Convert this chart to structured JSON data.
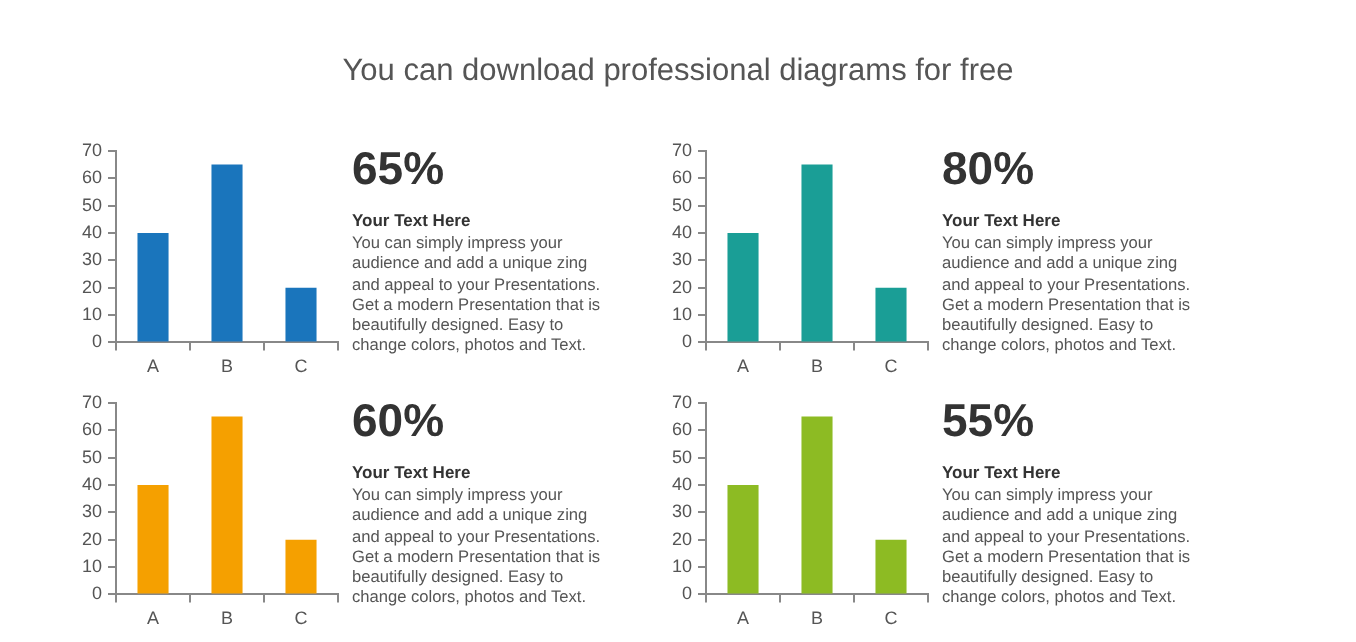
{
  "chart_data": [
    {
      "type": "bar",
      "subtitle": "You can download professional diagrams for free",
      "categories": [
        "A",
        "B",
        "C"
      ],
      "values": [
        40,
        65,
        20
      ],
      "color": "#1a75bc",
      "ylim": [
        0,
        70
      ],
      "yticks": [
        0,
        10,
        20,
        30,
        40,
        50,
        60,
        70
      ],
      "grid": false,
      "legend": false,
      "annotations": [
        "65%",
        "Your Text Here",
        "You can simply impress your audience and add a unique zing and appeal to your Presentations. Get a modern Presentation that is beautifully designed. Easy to change colors, photos and Text."
      ]
    },
    {
      "type": "bar",
      "categories": [
        "A",
        "B",
        "C"
      ],
      "values": [
        40,
        65,
        20
      ],
      "color": "#1a9e96",
      "ylim": [
        0,
        70
      ],
      "yticks": [
        0,
        10,
        20,
        30,
        40,
        50,
        60,
        70
      ],
      "grid": false,
      "legend": false,
      "annotations": [
        "80%",
        "Your Text Here",
        "You can simply impress your audience and add a unique zing and appeal to your Presentations. Get a modern Presentation that is beautifully designed. Easy to change colors, photos and Text."
      ]
    },
    {
      "type": "bar",
      "categories": [
        "A",
        "B",
        "C"
      ],
      "values": [
        40,
        65,
        20
      ],
      "color": "#f5a000",
      "ylim": [
        0,
        70
      ],
      "yticks": [
        0,
        10,
        20,
        30,
        40,
        50,
        60,
        70
      ],
      "grid": false,
      "legend": false,
      "annotations": [
        "60%",
        "Your Text Here",
        "You can simply impress your audience and add a unique zing and appeal to your Presentations. Get a modern Presentation that is beautifully designed. Easy to change colors, photos and Text."
      ]
    },
    {
      "type": "bar",
      "categories": [
        "A",
        "B",
        "C"
      ],
      "values": [
        40,
        65,
        20
      ],
      "color": "#8dbb23",
      "ylim": [
        0,
        70
      ],
      "yticks": [
        0,
        10,
        20,
        30,
        40,
        50,
        60,
        70
      ],
      "grid": false,
      "legend": false,
      "annotations": [
        "55%",
        "Your Text Here",
        "You can simply impress your audience and add a unique zing and appeal to your Presentations. Get a modern Presentation that is beautifully designed. Easy to change colors, photos and Text."
      ]
    }
  ]
}
